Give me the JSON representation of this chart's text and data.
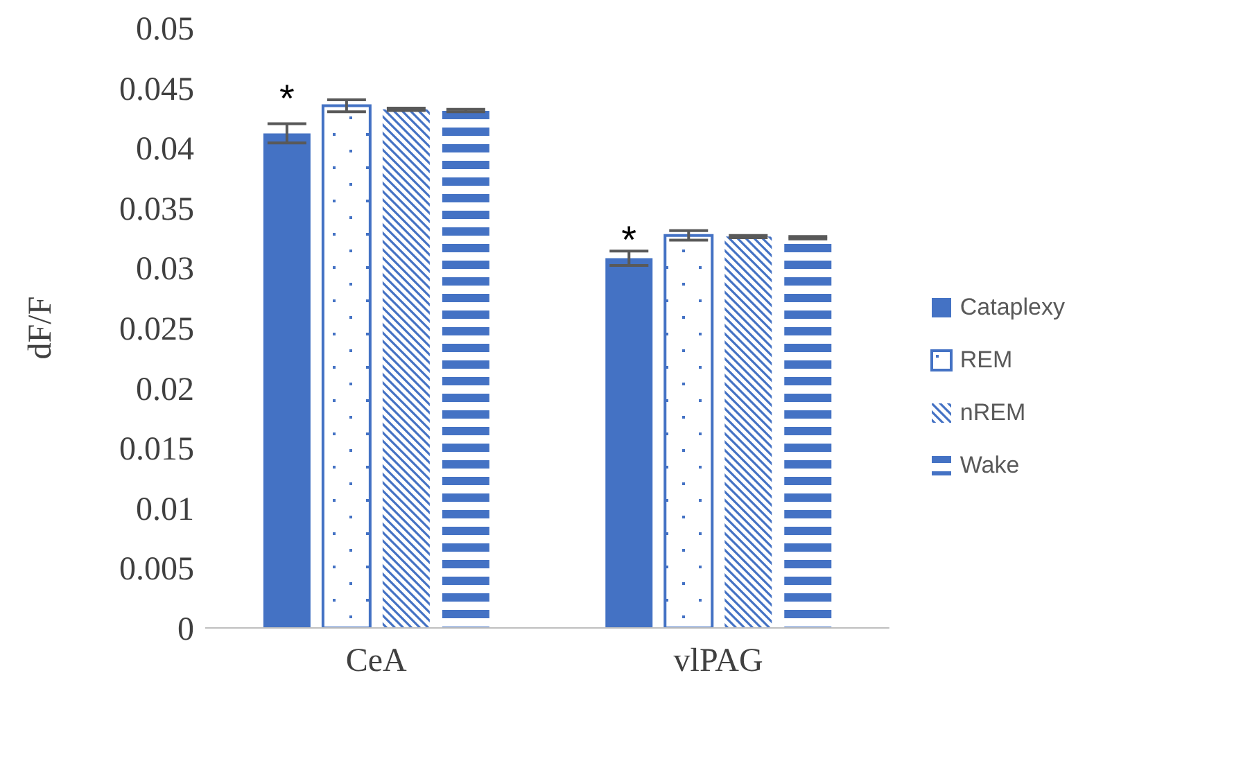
{
  "chart_data": {
    "type": "bar",
    "ylabel": "dF/F",
    "categories": [
      "CeA",
      "vlPAG"
    ],
    "series": [
      {
        "name": "Cataplexy",
        "color": "#4472c4",
        "values": [
          0.0412,
          0.0308
        ],
        "errors": [
          0.0008,
          0.0006
        ]
      },
      {
        "name": "REM",
        "color": "#4472c4",
        "values": [
          0.0435,
          0.0327
        ],
        "errors": [
          0.0005,
          0.0004
        ]
      },
      {
        "name": "nREM",
        "color": "#4472c4",
        "values": [
          0.0432,
          0.0326
        ],
        "errors": [
          0.0001,
          0.0001
        ]
      },
      {
        "name": "Wake",
        "color": "#4472c4",
        "values": [
          0.0431,
          0.0325
        ],
        "errors": [
          0.0001,
          0.0001
        ]
      }
    ],
    "ylim": [
      0,
      0.05
    ],
    "yticks": [
      0,
      0.005,
      0.01,
      0.015,
      0.02,
      0.025,
      0.03,
      0.035,
      0.04,
      0.045,
      0.05
    ],
    "grid": false,
    "legend": "right",
    "annotations": [
      "*",
      "*"
    ]
  }
}
